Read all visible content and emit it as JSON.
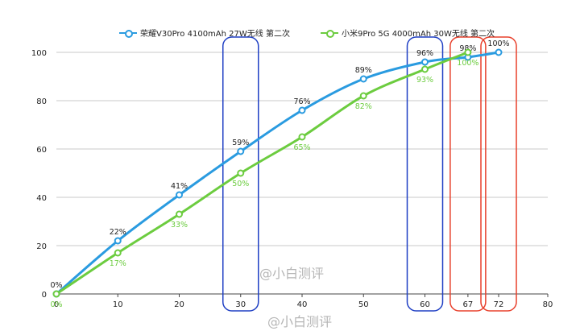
{
  "chart_data": {
    "type": "line",
    "x": [
      0,
      10,
      20,
      30,
      40,
      50,
      60,
      67,
      72
    ],
    "xticks": [
      0,
      10,
      20,
      30,
      40,
      50,
      60,
      67,
      72,
      80
    ],
    "yticks": [
      0,
      20,
      40,
      60,
      80,
      100
    ],
    "xlim": [
      0,
      80
    ],
    "ylim": [
      0,
      100
    ],
    "grid": "horizontal",
    "legend_position": "top-center",
    "series": [
      {
        "name": "荣耀V30Pro 4100mAh 27W无线 第二次",
        "color": "#2a9be0",
        "x": [
          0,
          10,
          20,
          30,
          40,
          50,
          60,
          67,
          72
        ],
        "values": [
          0,
          22,
          41,
          59,
          76,
          89,
          96,
          98,
          100
        ],
        "labels": [
          "0%",
          "22%",
          "41%",
          "59%",
          "76%",
          "89%",
          "96%",
          "98%",
          "100%"
        ]
      },
      {
        "name": "小米9Pro 5G 4000mAh 30W无线 第二次",
        "color": "#6ccc3f",
        "x": [
          0,
          10,
          20,
          30,
          40,
          50,
          60,
          67
        ],
        "values": [
          0,
          17,
          33,
          50,
          65,
          82,
          93,
          100
        ],
        "labels": [
          "0%",
          "17%",
          "33%",
          "50%",
          "65%",
          "82%",
          "93%",
          "100%"
        ]
      }
    ],
    "highlights": [
      {
        "x": 30,
        "color": "#1f3fc4"
      },
      {
        "x": 60,
        "color": "#1f3fc4"
      },
      {
        "x": 67,
        "color": "#e8402c"
      },
      {
        "x": 72,
        "color": "#e8402c"
      }
    ]
  },
  "watermarks": [
    "@小白测评",
    "@小白测评"
  ]
}
